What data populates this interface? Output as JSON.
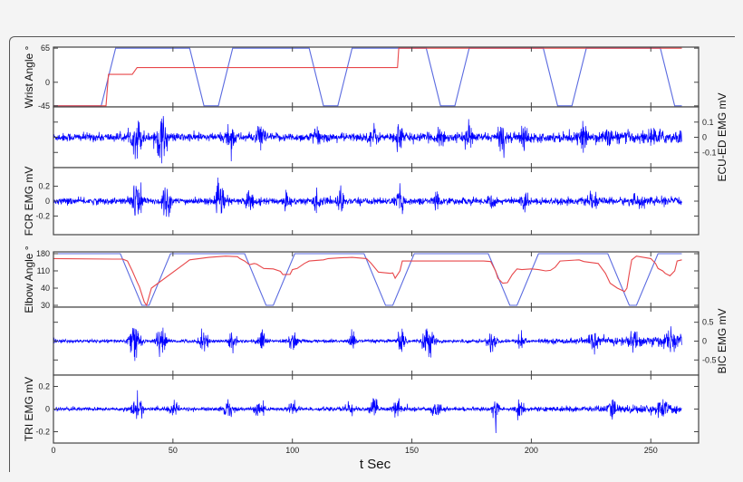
{
  "chart_data": {
    "type": "line",
    "title": "",
    "xlabel": "t Sec",
    "xlim": [
      0,
      270
    ],
    "xticks": [
      0,
      50,
      100,
      150,
      200,
      250
    ],
    "x_end": 263,
    "colors": {
      "target": "#5b6be0",
      "actual": "#e8474a",
      "emg": "#0000ff"
    },
    "panels": [
      {
        "id": "wrist",
        "kind": "angle",
        "ylabel": "Wrist Angle °",
        "ylabel_side": "left",
        "ylim": [
          -47,
          67
        ],
        "yticks": [
          -45,
          0,
          65
        ],
        "ytick_side": "left",
        "target_series": {
          "name": "Wrist target angle",
          "x": [
            0,
            20,
            26,
            57,
            63,
            69,
            75,
            107,
            113,
            119,
            125,
            156,
            162,
            168,
            174,
            205,
            211,
            217,
            223,
            254,
            260,
            263
          ],
          "y": [
            -45,
            -45,
            65,
            65,
            -45,
            -45,
            65,
            65,
            -45,
            -45,
            65,
            65,
            -45,
            -45,
            65,
            65,
            -45,
            -45,
            65,
            65,
            -45,
            -45
          ]
        },
        "actual_series": {
          "name": "Wrist actual angle",
          "x": [
            0,
            22,
            23,
            33,
            35,
            144,
            144.5,
            263
          ],
          "y": [
            -45,
            -45,
            15,
            15,
            28,
            28,
            65,
            65
          ]
        }
      },
      {
        "id": "ecu-ed",
        "kind": "emg",
        "ylabel": "ECU-ED EMG mV",
        "ylabel_side": "right",
        "ylim": [
          -0.2,
          0.2
        ],
        "yticks": [
          -0.1,
          0,
          0.1
        ],
        "ytick_side": "right",
        "baseline_amp": 0.025,
        "noise_end_amp": 0.04,
        "bursts": [
          [
            35,
            0.1,
            3
          ],
          [
            45,
            0.12,
            3
          ],
          [
            74,
            0.08,
            2.5
          ],
          [
            87,
            0.07,
            2
          ],
          [
            110,
            0.06,
            2
          ],
          [
            134,
            0.06,
            2
          ],
          [
            145,
            0.09,
            2
          ],
          [
            162,
            0.07,
            2
          ],
          [
            174,
            0.06,
            2
          ],
          [
            188,
            0.08,
            2
          ],
          [
            197,
            0.09,
            2
          ],
          [
            222,
            0.05,
            2
          ],
          [
            232,
            0.05,
            2
          ],
          [
            251,
            0.03,
            3
          ]
        ]
      },
      {
        "id": "fcr",
        "kind": "emg",
        "ylabel": "FCR EMG mV",
        "ylabel_side": "left",
        "ylim": [
          -0.45,
          0.45
        ],
        "yticks": [
          -0.2,
          0,
          0.2
        ],
        "ytick_side": "left",
        "baseline_amp": 0.04,
        "noise_end_amp": 0.05,
        "bursts": [
          [
            35,
            0.25,
            3
          ],
          [
            47,
            0.2,
            2.5
          ],
          [
            70,
            0.18,
            2.5
          ],
          [
            82,
            0.15,
            2
          ],
          [
            98,
            0.12,
            2
          ],
          [
            110,
            0.1,
            2
          ],
          [
            120,
            0.14,
            2
          ],
          [
            145,
            0.14,
            2
          ],
          [
            160,
            0.1,
            2
          ],
          [
            183,
            0.11,
            2
          ],
          [
            197,
            0.12,
            2
          ],
          [
            226,
            0.09,
            2
          ],
          [
            245,
            0.06,
            3
          ]
        ]
      },
      {
        "id": "elbow",
        "kind": "angle",
        "ylabel": "Elbow Angle °",
        "ylabel_side": "left",
        "ylim": [
          28,
          182
        ],
        "yticks": [
          30,
          40,
          110,
          180
        ],
        "ytick_side": "left",
        "ytick_positions": {
          "30": 0.0,
          "40": 0.333,
          "110": 0.667,
          "180": 1.0
        },
        "target_series": {
          "name": "Elbow target angle",
          "x": [
            0,
            28,
            37,
            40,
            49,
            80,
            89,
            92,
            101,
            130,
            139,
            142,
            151,
            182,
            191,
            194,
            203,
            232,
            241,
            244,
            253,
            263
          ],
          "y": [
            180,
            180,
            30,
            30,
            180,
            180,
            30,
            30,
            180,
            180,
            30,
            30,
            180,
            180,
            30,
            30,
            180,
            180,
            30,
            30,
            180,
            180
          ]
        },
        "actual_series": {
          "name": "Elbow actual angle",
          "x": [
            0,
            25,
            29,
            31,
            33,
            35,
            36,
            38,
            39,
            41,
            55,
            57,
            65,
            72,
            77,
            78,
            80,
            82,
            84,
            85,
            88,
            92,
            95,
            96,
            99,
            100,
            102,
            105,
            107,
            113,
            115,
            120,
            125,
            131,
            133,
            136,
            141,
            142,
            143,
            145,
            146,
            160,
            180,
            183,
            185,
            186,
            188,
            190,
            192,
            194,
            196,
            200,
            203,
            206,
            208,
            210,
            212,
            220,
            222,
            228,
            231,
            233,
            236,
            239,
            240,
            241,
            242,
            244,
            250,
            252,
            253,
            255,
            256,
            258,
            260,
            261,
            263
          ],
          "y": [
            160,
            158,
            158,
            150,
            110,
            65,
            45,
            32,
            30,
            40,
            140,
            155,
            165,
            170,
            168,
            160,
            150,
            135,
            140,
            138,
            120,
            118,
            108,
            95,
            96,
            115,
            120,
            140,
            150,
            155,
            160,
            163,
            165,
            160,
            140,
            105,
            100,
            102,
            80,
            110,
            150,
            150,
            150,
            148,
            110,
            80,
            60,
            62,
            95,
            118,
            115,
            118,
            115,
            110,
            112,
            125,
            150,
            155,
            148,
            140,
            100,
            60,
            40,
            38,
            40,
            100,
            155,
            170,
            160,
            140,
            120,
            110,
            100,
            90,
            110,
            150,
            155
          ]
        }
      },
      {
        "id": "bic",
        "kind": "emg",
        "ylabel": "BIC EMG mV",
        "ylabel_side": "right",
        "ylim": [
          -0.9,
          0.9
        ],
        "yticks": [
          -0.5,
          0,
          0.5
        ],
        "ytick_side": "right",
        "baseline_amp": 0.04,
        "noise_end_amp": 0.15,
        "bursts": [
          [
            34,
            0.45,
            3
          ],
          [
            45,
            0.35,
            2.5
          ],
          [
            63,
            0.25,
            2.5
          ],
          [
            75,
            0.3,
            2
          ],
          [
            87,
            0.3,
            2
          ],
          [
            100,
            0.25,
            2.5
          ],
          [
            125,
            0.2,
            2
          ],
          [
            146,
            0.4,
            2
          ],
          [
            157,
            0.35,
            3
          ],
          [
            184,
            0.35,
            2.5
          ],
          [
            196,
            0.25,
            2
          ],
          [
            226,
            0.15,
            3
          ],
          [
            243,
            0.15,
            3
          ],
          [
            258,
            0.15,
            3
          ]
        ]
      },
      {
        "id": "tri",
        "kind": "emg",
        "ylabel": "TRI EMG mV",
        "ylabel_side": "left",
        "ylim": [
          -0.3,
          0.3
        ],
        "yticks": [
          -0.2,
          0,
          0.2
        ],
        "ytick_side": "left",
        "baseline_amp": 0.015,
        "noise_end_amp": 0.04,
        "bursts": [
          [
            35,
            0.12,
            2.5
          ],
          [
            50,
            0.05,
            3
          ],
          [
            73,
            0.06,
            3
          ],
          [
            86,
            0.08,
            2.5
          ],
          [
            100,
            0.06,
            3
          ],
          [
            124,
            0.05,
            3
          ],
          [
            134,
            0.08,
            2
          ],
          [
            144,
            0.1,
            2
          ],
          [
            160,
            0.05,
            3
          ],
          [
            185,
            0.09,
            2
          ],
          [
            195,
            0.07,
            2.5
          ],
          [
            234,
            0.08,
            2
          ],
          [
            255,
            0.04,
            3
          ]
        ]
      }
    ]
  }
}
